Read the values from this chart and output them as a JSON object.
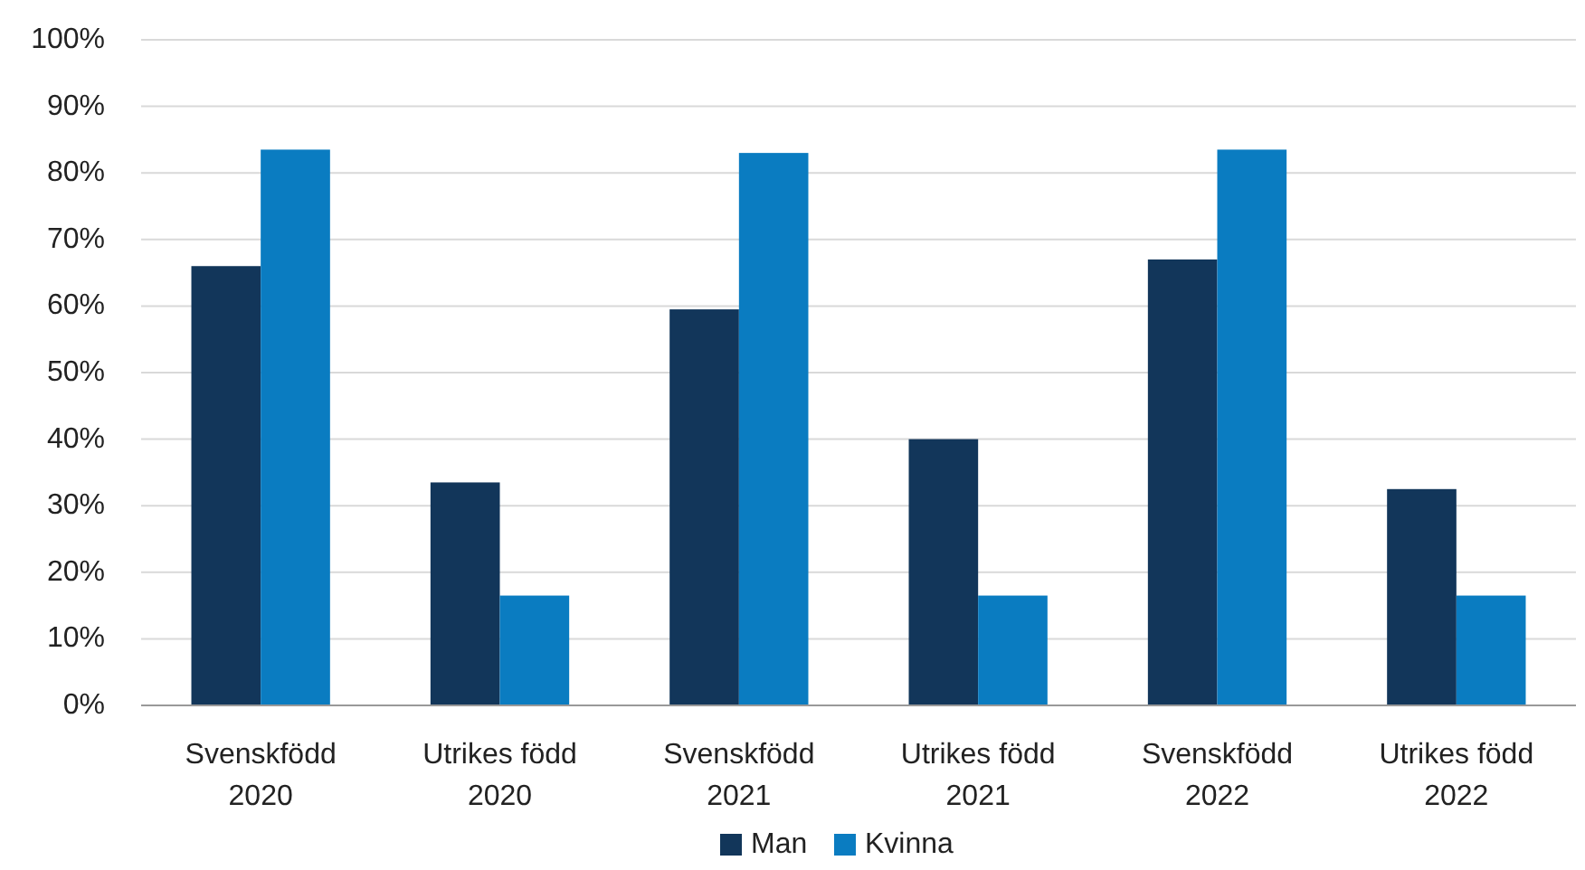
{
  "chart_data": {
    "type": "bar",
    "categories": [
      "Svenskfödd 2020",
      "Utrikes född 2020",
      "Svenskfödd 2021",
      "Utrikes född 2021",
      "Svenskfödd 2022",
      "Utrikes född 2022"
    ],
    "series": [
      {
        "name": "Man",
        "color": "#12365a",
        "values": [
          66,
          33.5,
          59.5,
          40,
          67,
          32.5
        ]
      },
      {
        "name": "Kvinna",
        "color": "#0a7cc1",
        "values": [
          83.5,
          16.5,
          83,
          16.5,
          83.5,
          16.5
        ]
      }
    ],
    "ylim": [
      0,
      100
    ],
    "yticks": [
      {
        "value": 0,
        "label": "0%"
      },
      {
        "value": 10,
        "label": "10%"
      },
      {
        "value": 20,
        "label": "20%"
      },
      {
        "value": 30,
        "label": "30%"
      },
      {
        "value": 40,
        "label": "40%"
      },
      {
        "value": 50,
        "label": "50%"
      },
      {
        "value": 60,
        "label": "60%"
      },
      {
        "value": 70,
        "label": "70%"
      },
      {
        "value": 80,
        "label": "80%"
      },
      {
        "value": 90,
        "label": "90%"
      },
      {
        "value": 100,
        "label": "100%"
      }
    ],
    "grid": "y",
    "legend": "bottom"
  }
}
